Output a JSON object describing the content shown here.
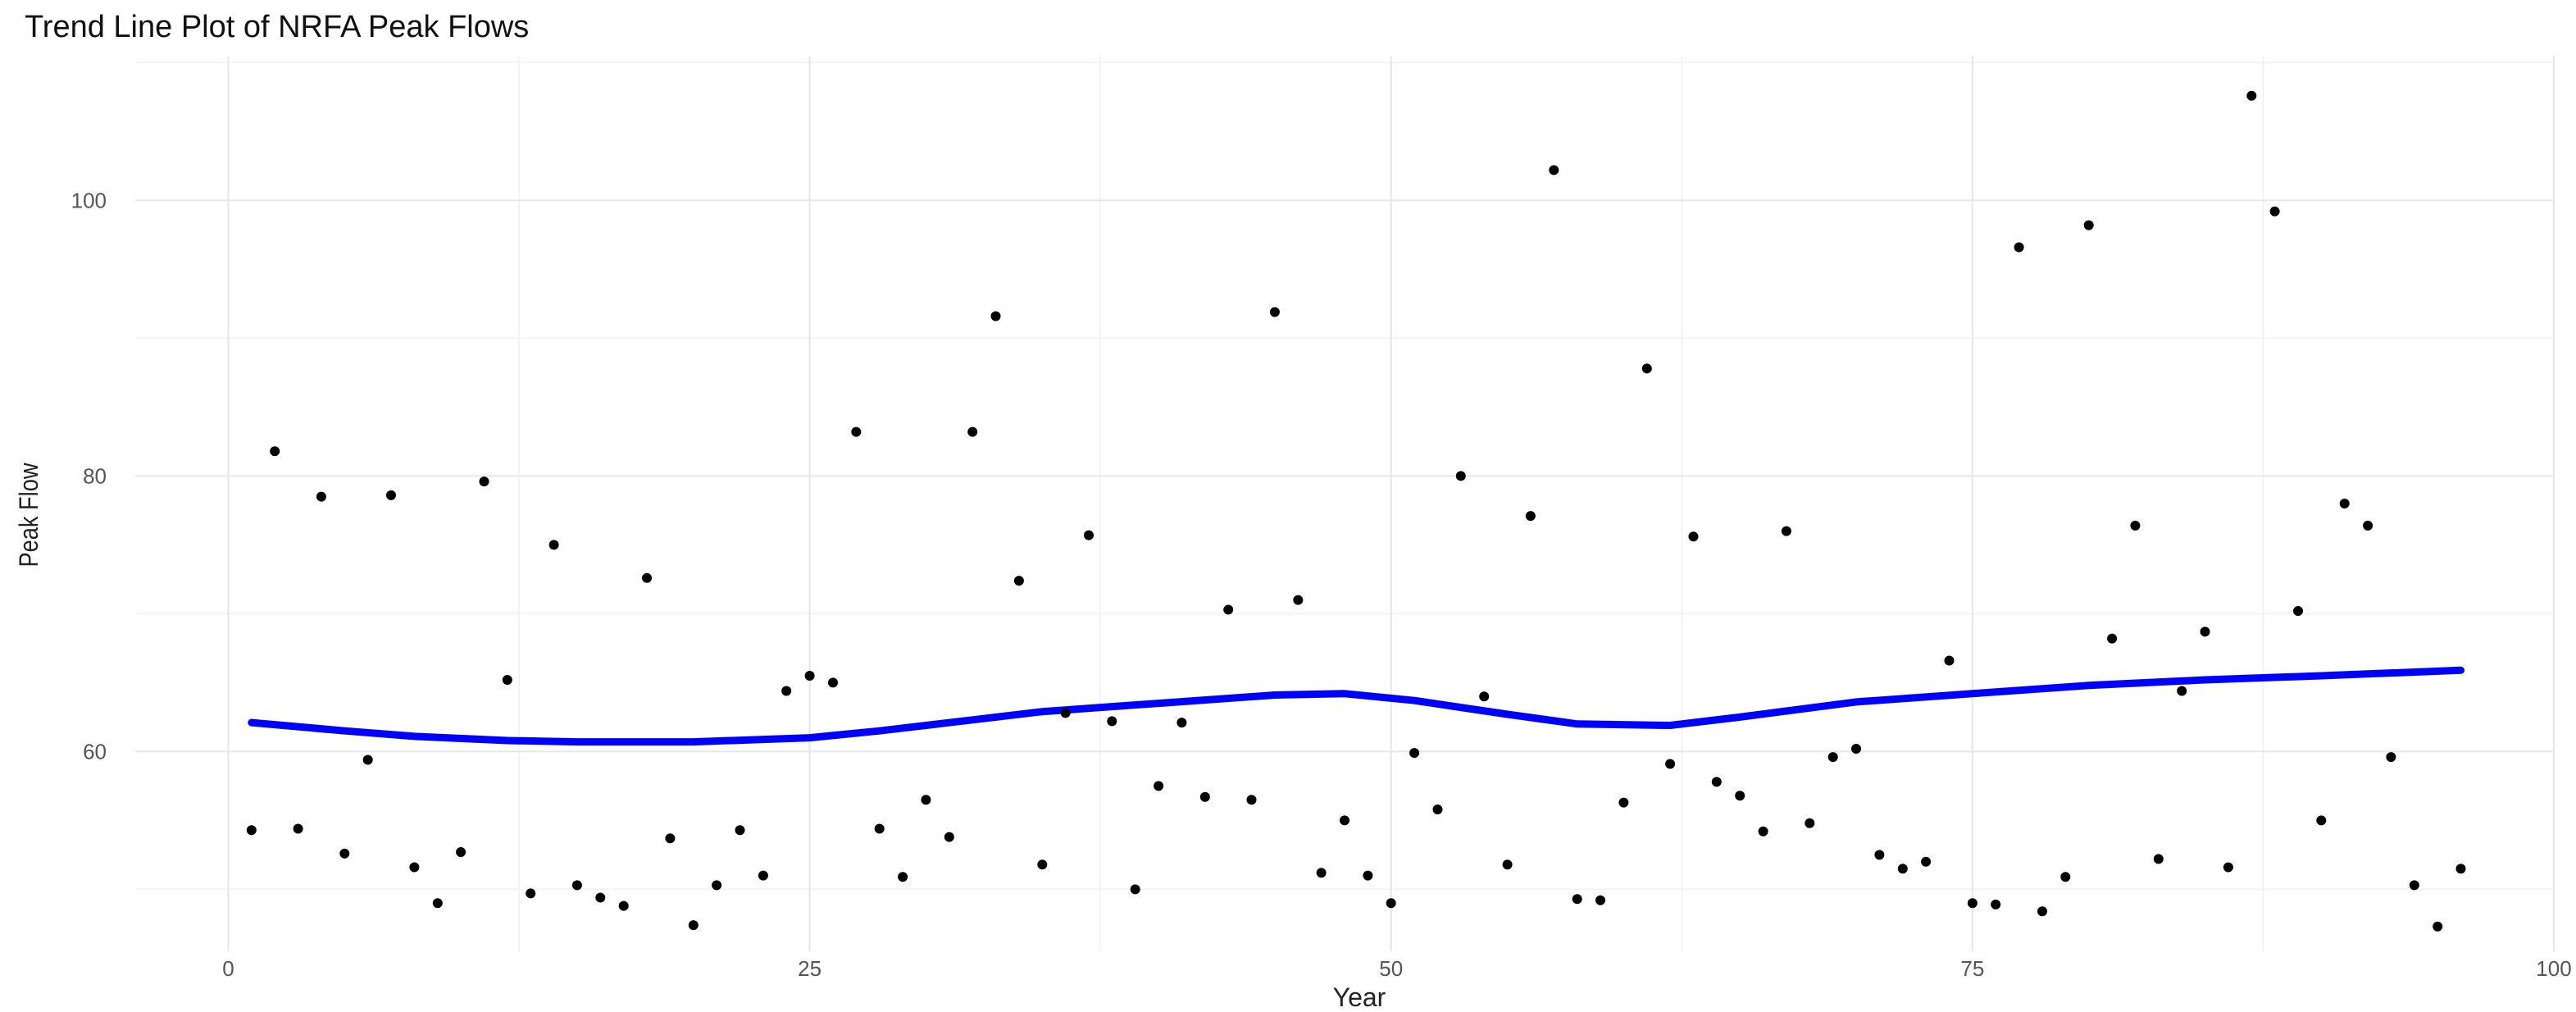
{
  "chart_data": {
    "type": "scatter",
    "title": "Trend Line Plot of NRFA Peak Flows",
    "xlabel": "Year",
    "ylabel": "Peak Flow",
    "xlim": [
      -4,
      100
    ],
    "ylim": [
      45.5,
      110.5
    ],
    "x_ticks": [
      0,
      25,
      50,
      75,
      100
    ],
    "y_ticks": [
      60,
      80,
      100
    ],
    "grid": true,
    "colors": {
      "points": "#000000",
      "trend": "#0000ff"
    },
    "points": [
      [
        1,
        54.3
      ],
      [
        2,
        81.8
      ],
      [
        3,
        54.4
      ],
      [
        4,
        78.5
      ],
      [
        5,
        52.6
      ],
      [
        6,
        59.4
      ],
      [
        7,
        78.6
      ],
      [
        8,
        51.6
      ],
      [
        9,
        49.0
      ],
      [
        10,
        52.7
      ],
      [
        11,
        79.6
      ],
      [
        12,
        65.2
      ],
      [
        13,
        49.7
      ],
      [
        14,
        75.0
      ],
      [
        15,
        50.3
      ],
      [
        16,
        49.4
      ],
      [
        17,
        48.8
      ],
      [
        18,
        72.6
      ],
      [
        19,
        53.7
      ],
      [
        20,
        47.4
      ],
      [
        21,
        50.3
      ],
      [
        22,
        54.3
      ],
      [
        23,
        51.0
      ],
      [
        24,
        64.4
      ],
      [
        25,
        65.5
      ],
      [
        26,
        65.0
      ],
      [
        27,
        83.2
      ],
      [
        28,
        54.4
      ],
      [
        29,
        50.9
      ],
      [
        30,
        56.5
      ],
      [
        31,
        53.8
      ],
      [
        32,
        83.2
      ],
      [
        33,
        91.6
      ],
      [
        34,
        72.4
      ],
      [
        35,
        51.8
      ],
      [
        36,
        62.8
      ],
      [
        37,
        75.7
      ],
      [
        38,
        62.2
      ],
      [
        39,
        50.0
      ],
      [
        40,
        57.5
      ],
      [
        41,
        62.1
      ],
      [
        42,
        56.7
      ],
      [
        43,
        70.3
      ],
      [
        44,
        56.5
      ],
      [
        45,
        91.9
      ],
      [
        46,
        71.0
      ],
      [
        47,
        51.2
      ],
      [
        48,
        55.0
      ],
      [
        49,
        51.0
      ],
      [
        50,
        49.0
      ],
      [
        51,
        59.9
      ],
      [
        52,
        55.8
      ],
      [
        53,
        80.0
      ],
      [
        54,
        64.0
      ],
      [
        55,
        51.8
      ],
      [
        56,
        77.1
      ],
      [
        57,
        102.2
      ],
      [
        58,
        49.3
      ],
      [
        59,
        49.2
      ],
      [
        60,
        56.3
      ],
      [
        61,
        87.8
      ],
      [
        62,
        59.1
      ],
      [
        63,
        75.6
      ],
      [
        64,
        57.8
      ],
      [
        65,
        56.8
      ],
      [
        66,
        54.2
      ],
      [
        67,
        76.0
      ],
      [
        68,
        54.8
      ],
      [
        69,
        59.6
      ],
      [
        70,
        60.2
      ],
      [
        71,
        52.5
      ],
      [
        72,
        51.5
      ],
      [
        73,
        52.0
      ],
      [
        74,
        66.6
      ],
      [
        75,
        49.0
      ],
      [
        76,
        48.9
      ],
      [
        77,
        96.6
      ],
      [
        78,
        48.4
      ],
      [
        79,
        50.9
      ],
      [
        80,
        98.2
      ],
      [
        81,
        68.2
      ],
      [
        82,
        76.4
      ],
      [
        83,
        52.2
      ],
      [
        84,
        64.4
      ],
      [
        85,
        68.7
      ],
      [
        86,
        51.6
      ],
      [
        87,
        107.6
      ],
      [
        88,
        99.2
      ],
      [
        89,
        70.2
      ],
      [
        90,
        55.0
      ],
      [
        91,
        78.0
      ],
      [
        92,
        76.4
      ],
      [
        93,
        59.6
      ],
      [
        94,
        50.3
      ],
      [
        95,
        47.3
      ],
      [
        96,
        51.5
      ]
    ],
    "trend": [
      [
        1,
        62.1
      ],
      [
        5,
        61.5
      ],
      [
        8,
        61.1
      ],
      [
        12,
        60.8
      ],
      [
        15,
        60.7
      ],
      [
        20,
        60.7
      ],
      [
        25,
        61.0
      ],
      [
        28,
        61.5
      ],
      [
        32,
        62.3
      ],
      [
        35,
        62.9
      ],
      [
        40,
        63.5
      ],
      [
        45,
        64.1
      ],
      [
        48,
        64.2
      ],
      [
        51,
        63.7
      ],
      [
        55,
        62.7
      ],
      [
        58,
        62.0
      ],
      [
        62,
        61.9
      ],
      [
        65,
        62.5
      ],
      [
        70,
        63.6
      ],
      [
        75,
        64.2
      ],
      [
        80,
        64.8
      ],
      [
        85,
        65.2
      ],
      [
        90,
        65.5
      ],
      [
        96,
        65.9
      ]
    ]
  }
}
